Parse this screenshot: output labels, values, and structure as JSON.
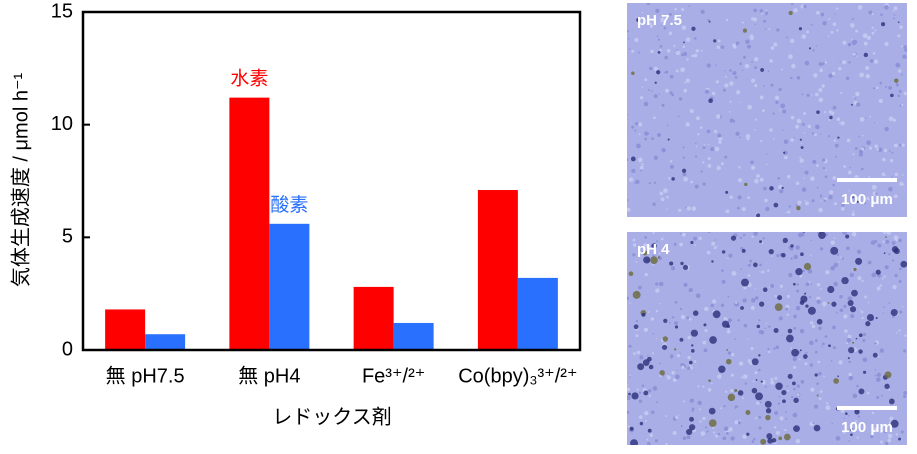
{
  "chart_data": {
    "type": "bar",
    "categories": [
      "無 pH7.5",
      "無 pH4",
      "Fe³⁺/²⁺",
      "Co(bpy)₃³⁺/²⁺"
    ],
    "series": [
      {
        "name": "水素",
        "color": "#ff0000",
        "values": [
          1.8,
          11.2,
          2.8,
          7.1
        ]
      },
      {
        "name": "酸素",
        "color": "#2970ff",
        "values": [
          0.7,
          5.6,
          1.2,
          3.2
        ]
      }
    ],
    "ylabel": "気体生成速度 / μmol h⁻¹",
    "xlabel": "レドックス剤",
    "ylim": [
      0,
      15
    ],
    "yticks": [
      0,
      5,
      10,
      15
    ]
  },
  "images": [
    {
      "label": "pH 7.5",
      "scale_bar": "100 μm"
    },
    {
      "label": "pH 4",
      "scale_bar": "100 μm"
    }
  ]
}
